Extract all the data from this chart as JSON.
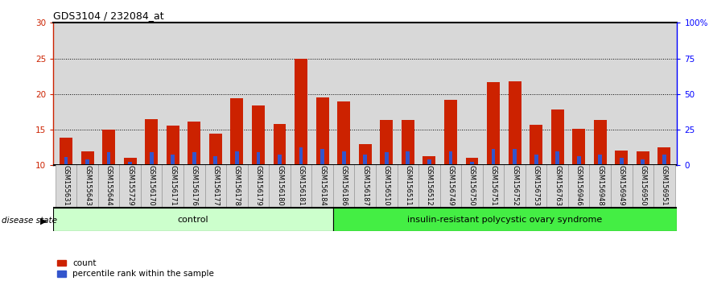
{
  "title": "GDS3104 / 232084_at",
  "samples": [
    "GSM155631",
    "GSM155643",
    "GSM155644",
    "GSM155729",
    "GSM156170",
    "GSM156171",
    "GSM156176",
    "GSM156177",
    "GSM156178",
    "GSM156179",
    "GSM156180",
    "GSM156181",
    "GSM156184",
    "GSM156186",
    "GSM156187",
    "GSM156510",
    "GSM156511",
    "GSM156512",
    "GSM156749",
    "GSM156750",
    "GSM156751",
    "GSM156752",
    "GSM156753",
    "GSM156763",
    "GSM156946",
    "GSM156948",
    "GSM156949",
    "GSM156950",
    "GSM156951"
  ],
  "counts": [
    13.9,
    12.0,
    15.0,
    11.0,
    16.5,
    15.6,
    16.1,
    14.4,
    19.4,
    18.4,
    15.8,
    25.0,
    19.5,
    19.0,
    13.0,
    16.4,
    16.4,
    11.3,
    19.2,
    11.0,
    21.7,
    21.8,
    15.7,
    17.8,
    15.1,
    16.4,
    12.1,
    12.0,
    12.5
  ],
  "percentile_values": [
    11.2,
    10.8,
    11.8,
    10.5,
    11.8,
    11.5,
    11.8,
    11.3,
    12.0,
    11.8,
    11.5,
    12.5,
    12.3,
    12.0,
    11.5,
    11.8,
    12.0,
    10.8,
    12.0,
    10.5,
    12.3,
    12.3,
    11.5,
    12.0,
    11.3,
    11.5,
    11.0,
    10.8,
    11.5
  ],
  "n_control": 13,
  "n_disease": 16,
  "control_label": "control",
  "disease_label": "insulin-resistant polycystic ovary syndrome",
  "ymin": 10,
  "ymax": 30,
  "yticks_left": [
    10,
    15,
    20,
    25,
    30
  ],
  "yticks_right": [
    0,
    25,
    50,
    75,
    100
  ],
  "right_axis_labels": [
    "0",
    "25",
    "50",
    "75",
    "100%"
  ],
  "bar_color_red": "#cc2200",
  "bar_color_blue": "#3355cc",
  "bg_plot": "#d8d8d8",
  "bg_label_control": "#ccffcc",
  "bg_label_disease": "#44ee44",
  "legend_count": "count",
  "legend_percentile": "percentile rank within the sample",
  "bar_width": 0.6
}
